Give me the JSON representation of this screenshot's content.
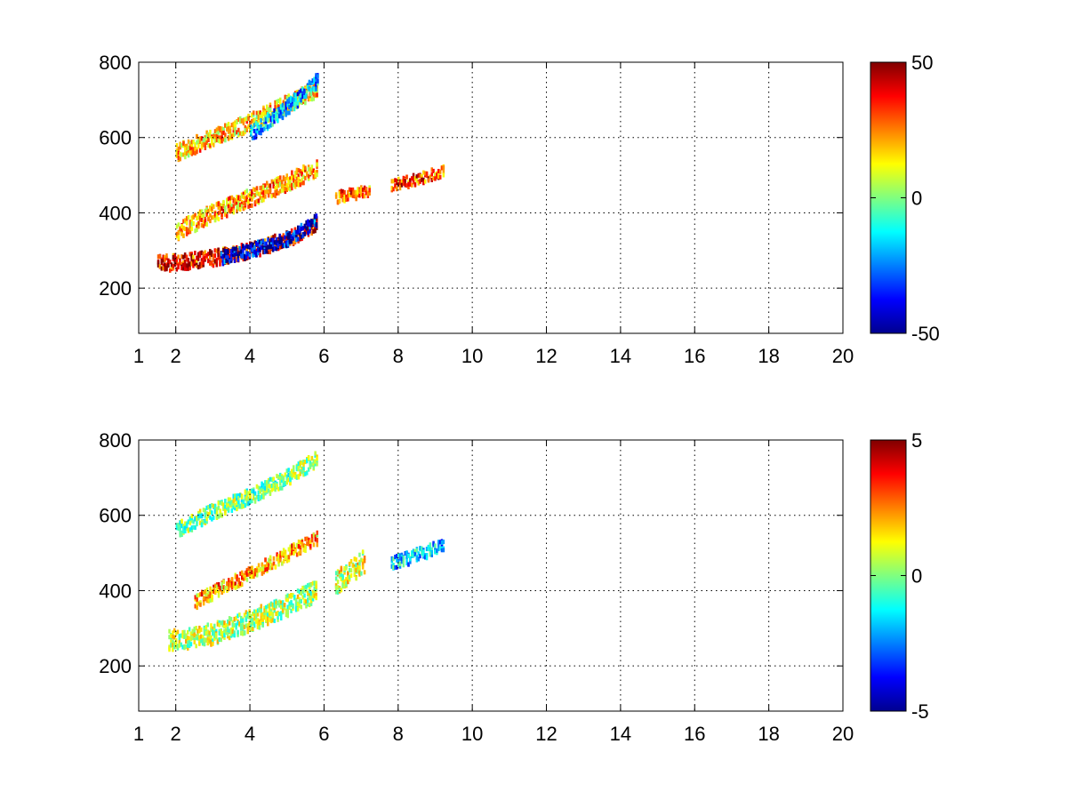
{
  "chart_data": [
    {
      "type": "heatmap",
      "panel": "top",
      "x_ticks": [
        1,
        2,
        4,
        6,
        8,
        10,
        12,
        14,
        16,
        18,
        20
      ],
      "y_ticks": [
        200,
        400,
        600,
        800
      ],
      "xlim": [
        1,
        20
      ],
      "ylim": [
        80,
        800
      ],
      "grid": true,
      "colormap": "jet",
      "colorbar": {
        "ticks": [
          -50,
          0,
          50
        ],
        "clim": [
          -50,
          50
        ]
      },
      "features": [
        {
          "desc": "lower ridge",
          "x": [
            1.5,
            2.0,
            3.0,
            4.0,
            5.0,
            5.8
          ],
          "y": [
            265,
            268,
            280,
            300,
            330,
            370
          ],
          "value": 45,
          "width": 40
        },
        {
          "desc": "lower ridge negative flank",
          "x": [
            3.2,
            4.0,
            5.0,
            5.8
          ],
          "y": [
            280,
            300,
            330,
            380
          ],
          "value": -50,
          "width": 35
        },
        {
          "desc": "middle band",
          "x": [
            2.0,
            3.0,
            4.0,
            5.0,
            5.8
          ],
          "y": [
            350,
            400,
            440,
            480,
            520
          ],
          "value": 25,
          "width": 45
        },
        {
          "desc": "upper band",
          "x": [
            2.0,
            3.0,
            4.0,
            5.0,
            5.8
          ],
          "y": [
            560,
            600,
            640,
            690,
            730
          ],
          "value": 20,
          "width": 45
        },
        {
          "desc": "upper band negative",
          "x": [
            4.0,
            5.0,
            5.8
          ],
          "y": [
            610,
            680,
            750
          ],
          "value": -25,
          "width": 40
        },
        {
          "desc": "cluster near x=7",
          "x": [
            6.3,
            6.8,
            7.2
          ],
          "y": [
            440,
            450,
            460
          ],
          "value": 30,
          "width": 30
        },
        {
          "desc": "cluster near x=8-9",
          "x": [
            7.8,
            8.5,
            9.2
          ],
          "y": [
            470,
            490,
            510
          ],
          "value": 35,
          "width": 30
        }
      ]
    },
    {
      "type": "heatmap",
      "panel": "bottom",
      "x_ticks": [
        1,
        2,
        4,
        6,
        8,
        10,
        12,
        14,
        16,
        18,
        20
      ],
      "y_ticks": [
        200,
        400,
        600,
        800
      ],
      "xlim": [
        1,
        20
      ],
      "ylim": [
        80,
        800
      ],
      "grid": true,
      "colormap": "jet",
      "colorbar": {
        "ticks": [
          -5,
          0,
          5
        ],
        "clim": [
          -5,
          5
        ]
      },
      "features": [
        {
          "desc": "lower band",
          "x": [
            1.8,
            3.0,
            4.0,
            5.0,
            5.8
          ],
          "y": [
            265,
            285,
            320,
            360,
            400
          ],
          "value": 0.5,
          "width": 55
        },
        {
          "desc": "middle band",
          "x": [
            2.5,
            3.5,
            4.5,
            5.8
          ],
          "y": [
            370,
            420,
            470,
            540
          ],
          "value": 2.5,
          "width": 35
        },
        {
          "desc": "upper band",
          "x": [
            2.0,
            3.0,
            4.0,
            5.0,
            5.8
          ],
          "y": [
            560,
            610,
            650,
            700,
            750
          ],
          "value": 0.0,
          "width": 40
        },
        {
          "desc": "cluster near x=7",
          "x": [
            6.3,
            7.1
          ],
          "y": [
            420,
            480
          ],
          "value": 1.0,
          "width": 60
        },
        {
          "desc": "cluster near x=8-9",
          "x": [
            7.8,
            9.2
          ],
          "y": [
            470,
            520
          ],
          "value": -2.0,
          "width": 35
        }
      ]
    }
  ]
}
